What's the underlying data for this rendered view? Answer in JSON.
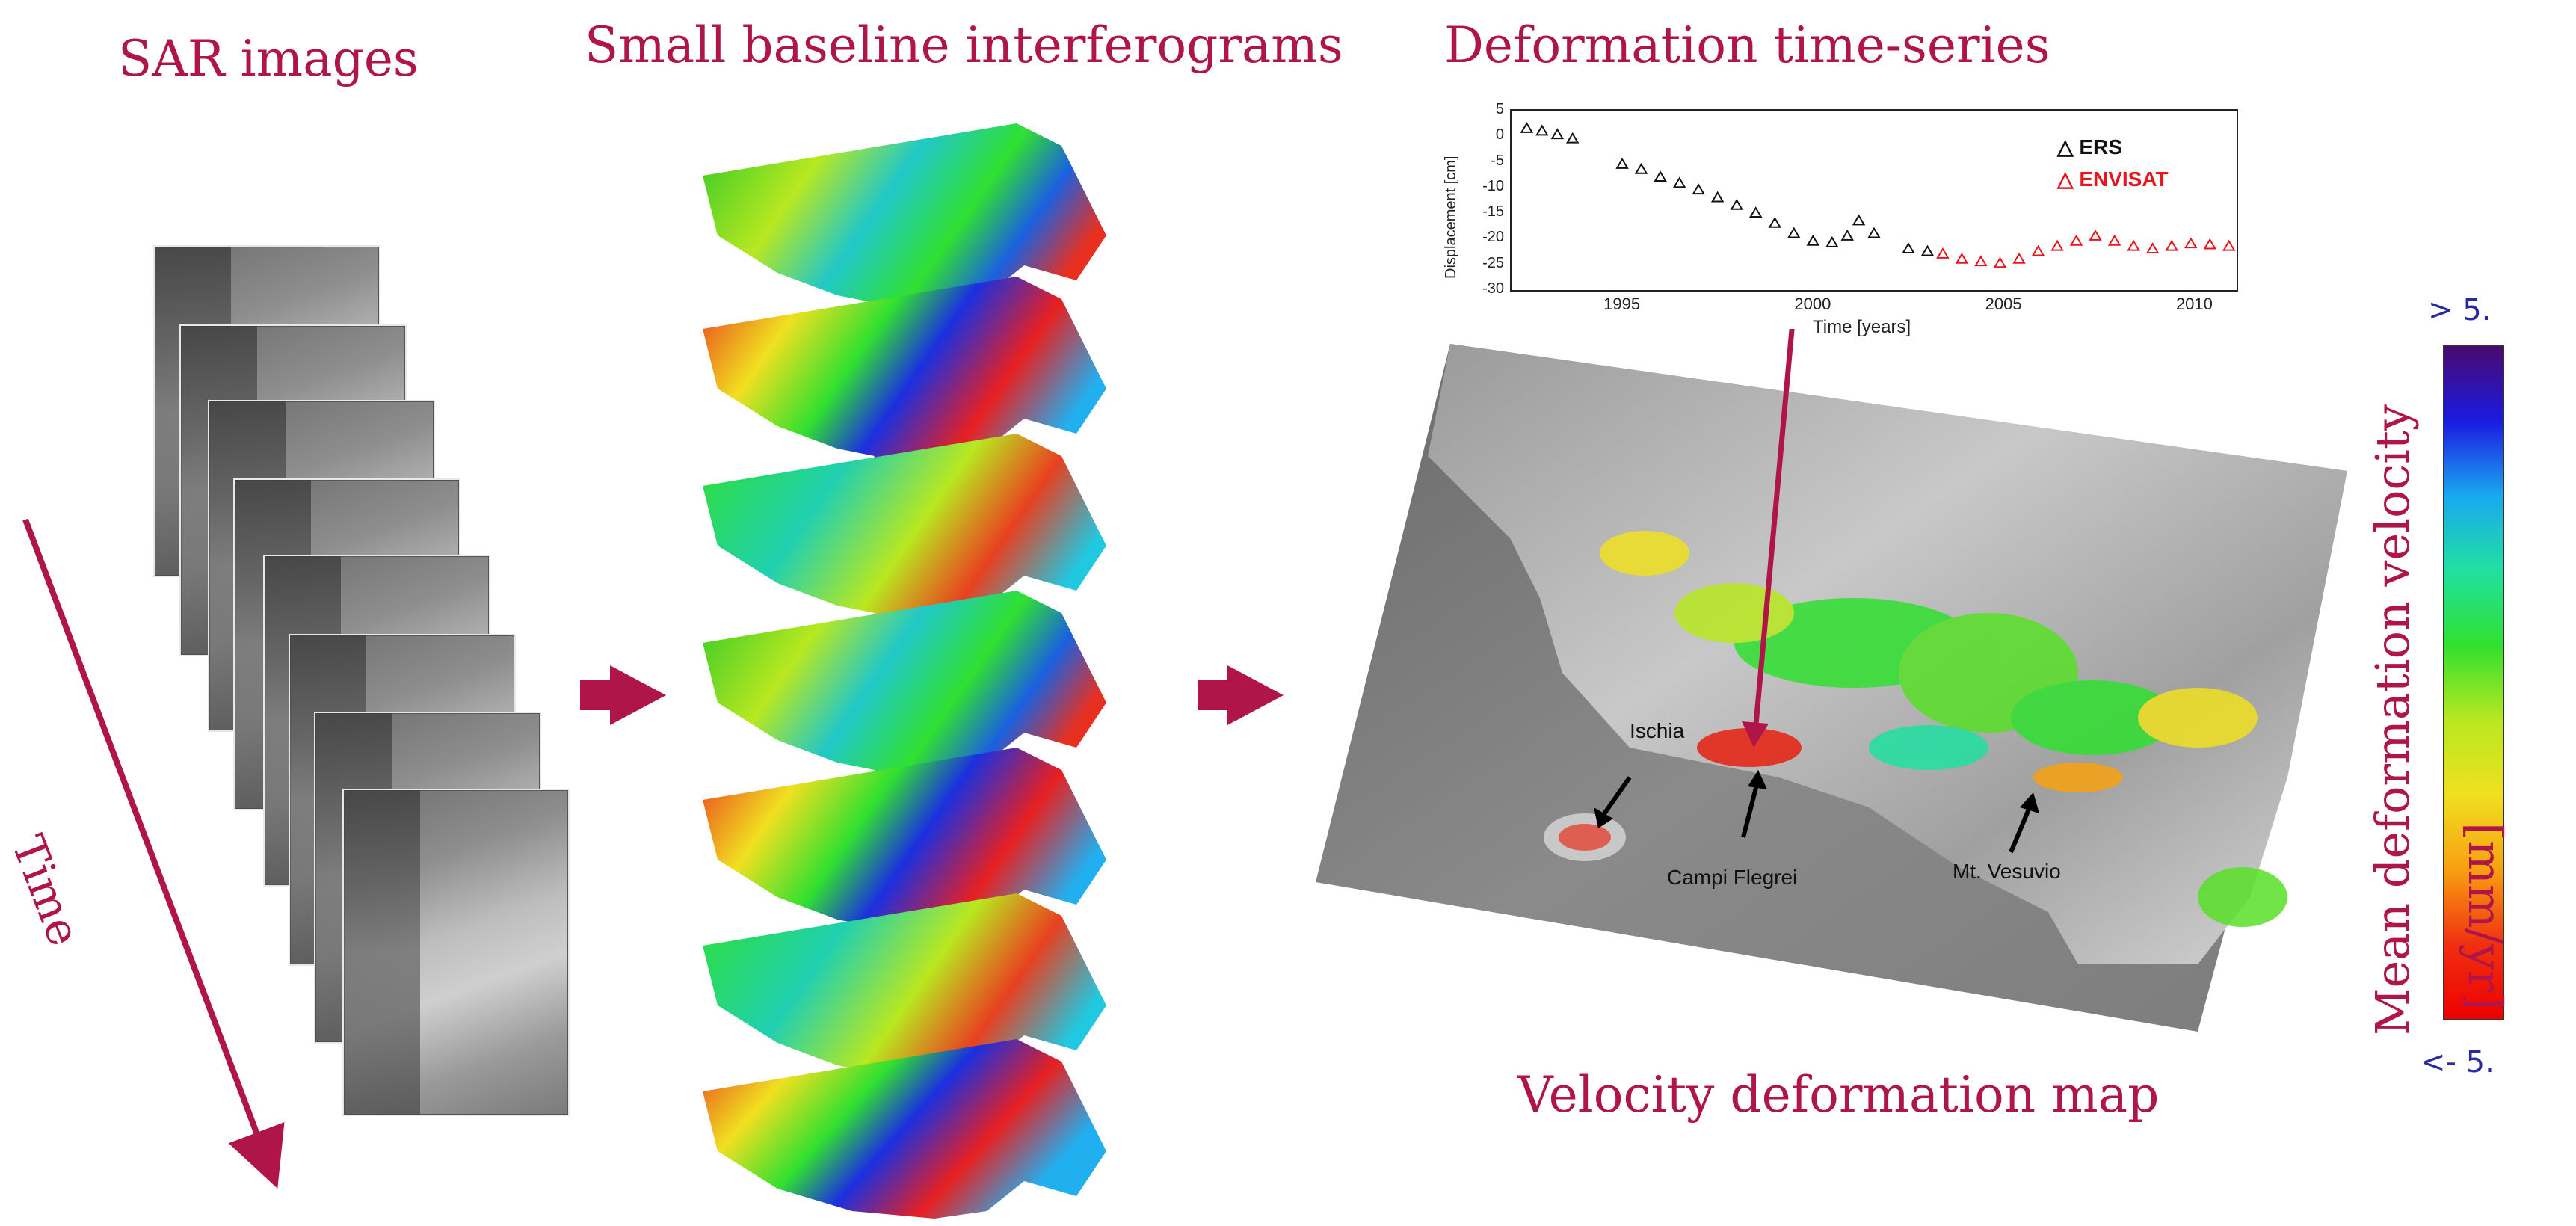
{
  "titles": {
    "sar_images": "SAR images",
    "interferograms": "Small baseline interferograms",
    "time_series": "Deformation time-series",
    "velocity_map": "Velocity deformation map",
    "time_axis": "Time"
  },
  "colors": {
    "accent": "#b0154a",
    "ers": "#111111",
    "envisat": "#e8161c",
    "colorbar_label": "#2a2aa0"
  },
  "chart_data": {
    "type": "scatter",
    "title": "",
    "xlabel": "Time [years]",
    "ylabel": "Displacement [cm]",
    "xlim": [
      1992,
      2011
    ],
    "ylim": [
      -30,
      5
    ],
    "xticks": [
      "1995",
      "2000",
      "2005",
      "2010"
    ],
    "yticks": [
      "5",
      "0",
      "-5",
      "-10",
      "-15",
      "-20",
      "-25",
      "-30"
    ],
    "series": [
      {
        "name": "ERS",
        "marker": "triangle",
        "points": [
          [
            1992.4,
            1.5
          ],
          [
            1992.8,
            1.0
          ],
          [
            1993.2,
            0.3
          ],
          [
            1993.6,
            -0.5
          ],
          [
            1994.9,
            -5.5
          ],
          [
            1995.4,
            -6.5
          ],
          [
            1995.9,
            -8.0
          ],
          [
            1996.4,
            -9.2
          ],
          [
            1996.9,
            -10.5
          ],
          [
            1997.4,
            -12.0
          ],
          [
            1997.9,
            -13.5
          ],
          [
            1998.4,
            -15.0
          ],
          [
            1998.9,
            -17.0
          ],
          [
            1999.4,
            -19.0
          ],
          [
            1999.9,
            -20.5
          ],
          [
            2000.4,
            -20.8
          ],
          [
            2000.8,
            -19.5
          ],
          [
            2001.1,
            -16.5
          ],
          [
            2001.5,
            -19.0
          ],
          [
            2002.4,
            -22.0
          ],
          [
            2002.9,
            -22.5
          ]
        ]
      },
      {
        "name": "ENVISAT",
        "marker": "triangle",
        "points": [
          [
            2003.3,
            -23.0
          ],
          [
            2003.8,
            -24.0
          ],
          [
            2004.3,
            -24.5
          ],
          [
            2004.8,
            -24.8
          ],
          [
            2005.3,
            -24.0
          ],
          [
            2005.8,
            -22.5
          ],
          [
            2006.3,
            -21.5
          ],
          [
            2006.8,
            -20.5
          ],
          [
            2007.3,
            -19.5
          ],
          [
            2007.8,
            -20.5
          ],
          [
            2008.3,
            -21.5
          ],
          [
            2008.8,
            -22.0
          ],
          [
            2009.3,
            -21.5
          ],
          [
            2009.8,
            -21.0
          ],
          [
            2010.3,
            -21.2
          ],
          [
            2010.8,
            -21.5
          ]
        ]
      }
    ],
    "legend": [
      "ERS",
      "ENVISAT"
    ],
    "legend_position": "top-right"
  },
  "map": {
    "labels": {
      "ischia": "Ischia",
      "campi_flegrei": "Campi Flegrei",
      "vesuvio": "Mt. Vesuvio"
    }
  },
  "colorbar": {
    "max_label": "> 5.",
    "min_label": "<- 5.",
    "title": "Mean deformation velocity",
    "unit": "[mm/yr]",
    "stops": [
      "#4a0a6e",
      "#1a1ae0",
      "#1aa8f0",
      "#20e0a0",
      "#30e030",
      "#b8e820",
      "#f0e020",
      "#f8a010",
      "#f03010",
      "#ee0000"
    ]
  },
  "sar_stack_count": 8,
  "interferogram_count": 7
}
